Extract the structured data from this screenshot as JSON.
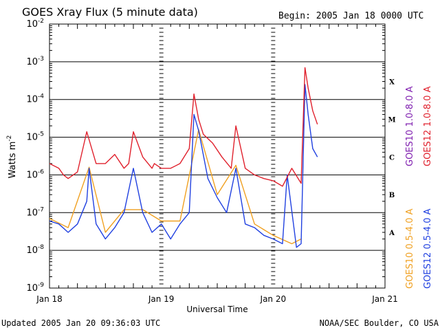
{
  "chart_data": {
    "type": "line",
    "title": "GOES Xray Flux (5 minute data)",
    "begin_label": "Begin:  2005 Jan 18 0000 UTC",
    "xlabel": "Universal Time",
    "ylabel": "Watts m",
    "ylabel_exponent": "-2",
    "y_scale": "log",
    "ylim": [
      1e-09,
      0.01
    ],
    "y_tick_labels": [
      {
        "value": 1e-09,
        "base": "10",
        "exp": "-9"
      },
      {
        "value": 1e-08,
        "base": "10",
        "exp": "-8"
      },
      {
        "value": 1e-07,
        "base": "10",
        "exp": "-7"
      },
      {
        "value": 1e-06,
        "base": "10",
        "exp": "-6"
      },
      {
        "value": 1e-05,
        "base": "10",
        "exp": "-5"
      },
      {
        "value": 0.0001,
        "base": "10",
        "exp": "-4"
      },
      {
        "value": 0.001,
        "base": "10",
        "exp": "-3"
      },
      {
        "value": 0.01,
        "base": "10",
        "exp": "-2"
      }
    ],
    "x_ticks": [
      {
        "value": "2005-01-18",
        "label": "Jan 18"
      },
      {
        "value": "2005-01-19",
        "label": "Jan 19"
      },
      {
        "value": "2005-01-20",
        "label": "Jan 20"
      },
      {
        "value": "2005-01-21",
        "label": "Jan 21"
      }
    ],
    "xlim": [
      "2005-01-18 00:00",
      "2005-01-21 00:00"
    ],
    "flare_classes": [
      {
        "label": "X",
        "value": 0.0003
      },
      {
        "label": "M",
        "value": 3e-05
      },
      {
        "label": "C",
        "value": 3e-06
      },
      {
        "label": "B",
        "value": 3e-07
      },
      {
        "label": "A",
        "value": 3e-08
      }
    ],
    "gridlines_y": [
      1e-08,
      1e-07,
      1e-06,
      1e-05,
      0.0001,
      0.001
    ],
    "legend_right_top": [
      {
        "name": "GOES10 1.0-8.0 A",
        "color": "#8020b0"
      },
      {
        "name": "GOES12 1.0-8.0 A",
        "color": "#e0202c"
      }
    ],
    "legend_right_bottom": [
      {
        "name": "GOES10 0.5-4.0 A",
        "color": "#f0a020"
      },
      {
        "name": "GOES12 0.5-4.0 A",
        "color": "#2040e0"
      }
    ],
    "series": [
      {
        "name": "GOES12 1.0-8.0 A",
        "color": "#e0202c",
        "x": [
          "2005-01-18 00:00",
          "2005-01-18 02:00",
          "2005-01-18 03:00",
          "2005-01-18 04:00",
          "2005-01-18 06:00",
          "2005-01-18 08:00",
          "2005-01-18 10:00",
          "2005-01-18 12:00",
          "2005-01-18 14:00",
          "2005-01-18 16:00",
          "2005-01-18 17:00",
          "2005-01-18 18:00",
          "2005-01-18 20:00",
          "2005-01-18 22:00",
          "2005-01-18 22:30",
          "2005-01-19 00:00",
          "2005-01-19 02:00",
          "2005-01-19 04:00",
          "2005-01-19 06:00",
          "2005-01-19 07:00",
          "2005-01-19 08:00",
          "2005-01-19 09:00",
          "2005-01-19 11:00",
          "2005-01-19 13:00",
          "2005-01-19 15:00",
          "2005-01-19 16:00",
          "2005-01-19 18:00",
          "2005-01-19 20:00",
          "2005-01-19 22:00",
          "2005-01-20 00:00",
          "2005-01-20 02:00",
          "2005-01-20 04:00",
          "2005-01-20 06:00",
          "2005-01-20 06:50",
          "2005-01-20 07:30",
          "2005-01-20 08:30",
          "2005-01-20 09:30"
        ],
        "y": [
          2e-06,
          1.5e-06,
          1e-06,
          8e-07,
          1.2e-06,
          1.4e-05,
          2e-06,
          2e-06,
          3.5e-06,
          1.5e-06,
          2e-06,
          1.4e-05,
          3e-06,
          1.5e-06,
          2e-06,
          1.5e-06,
          1.5e-06,
          2e-06,
          5e-06,
          0.00014,
          3e-05,
          1.2e-05,
          7e-06,
          3e-06,
          1.5e-06,
          2e-05,
          1.5e-06,
          1e-06,
          8e-07,
          7e-07,
          5e-07,
          1.5e-06,
          6e-07,
          0.0007,
          0.0002,
          5e-05,
          2.2e-05
        ]
      },
      {
        "name": "GOES12 0.5-4.0 A",
        "color": "#2040e0",
        "x": [
          "2005-01-18 00:00",
          "2005-01-18 02:00",
          "2005-01-18 04:00",
          "2005-01-18 06:00",
          "2005-01-18 08:00",
          "2005-01-18 08:30",
          "2005-01-18 10:00",
          "2005-01-18 12:00",
          "2005-01-18 14:00",
          "2005-01-18 16:00",
          "2005-01-18 18:00",
          "2005-01-18 20:00",
          "2005-01-18 22:00",
          "2005-01-19 00:00",
          "2005-01-19 02:00",
          "2005-01-19 04:00",
          "2005-01-19 06:00",
          "2005-01-19 07:00",
          "2005-01-19 08:00",
          "2005-01-19 10:00",
          "2005-01-19 12:00",
          "2005-01-19 14:00",
          "2005-01-19 16:00",
          "2005-01-19 18:00",
          "2005-01-19 20:00",
          "2005-01-19 22:00",
          "2005-01-20 00:00",
          "2005-01-20 02:00",
          "2005-01-20 03:00",
          "2005-01-20 05:00",
          "2005-01-20 06:00",
          "2005-01-20 06:50",
          "2005-01-20 07:30",
          "2005-01-20 08:30",
          "2005-01-20 09:30"
        ],
        "y": [
          6e-08,
          5e-08,
          3e-08,
          5e-08,
          2e-07,
          1.5e-06,
          5e-08,
          2e-08,
          4e-08,
          1e-07,
          1.5e-06,
          1e-07,
          3e-08,
          5e-08,
          2e-08,
          5e-08,
          1e-07,
          4e-05,
          1.5e-05,
          8e-07,
          2.5e-07,
          1e-07,
          1.5e-06,
          5e-08,
          4e-08,
          2.5e-08,
          2e-08,
          1.5e-08,
          1e-06,
          1.2e-08,
          1.5e-08,
          0.00025,
          4e-05,
          5e-06,
          3e-06
        ]
      },
      {
        "name": "GOES10 0.5-4.0 A",
        "color": "#f0a020",
        "x": [
          "2005-01-18 00:00",
          "2005-01-18 04:00",
          "2005-01-18 08:30",
          "2005-01-18 12:00",
          "2005-01-18 16:00",
          "2005-01-18 20:00",
          "2005-01-19 00:00",
          "2005-01-19 04:00",
          "2005-01-19 08:00",
          "2005-01-19 12:00",
          "2005-01-19 16:00",
          "2005-01-19 20:00",
          "2005-01-20 00:00",
          "2005-01-20 04:00",
          "2005-01-20 06:00"
        ],
        "y": [
          7e-08,
          4e-08,
          1.6e-06,
          3e-08,
          1.2e-07,
          1.2e-07,
          6e-08,
          6e-08,
          1.6e-05,
          3e-07,
          1.8e-06,
          5e-08,
          2.5e-08,
          1.5e-08,
          2e-08
        ]
      }
    ],
    "grid": true,
    "footer_left": "Updated 2005 Jan 20 09:36:03 UTC",
    "footer_right": "NOAA/SEC Boulder, CO USA",
    "colors": {
      "frame": "#000000",
      "background": "#ffffff"
    }
  }
}
